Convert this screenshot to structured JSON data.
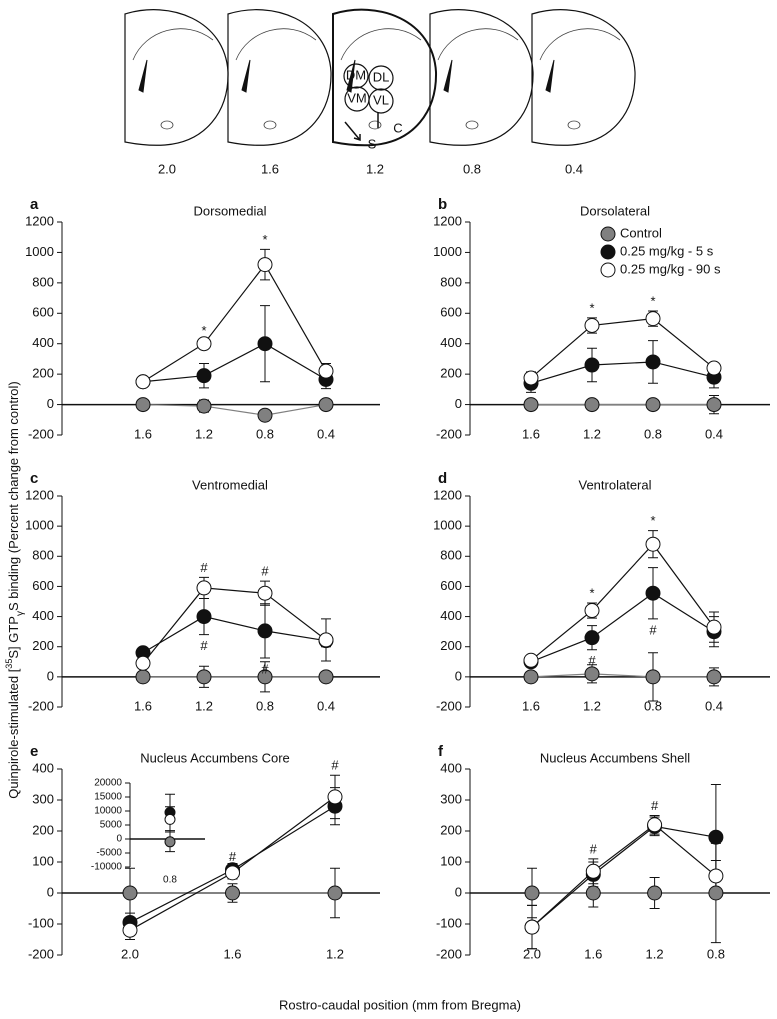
{
  "brain_sections": {
    "positions": [
      "2.0",
      "1.6",
      "1.2",
      "0.8",
      "0.4"
    ],
    "regions": [
      "DM",
      "DL",
      "VM",
      "VL"
    ],
    "arrows": [
      "S",
      "C"
    ]
  },
  "figure": {
    "y_label_parts": [
      "Quinpirole-stimulated [",
      "35",
      "S] GTP",
      "γ",
      "S binding (Percent change from control)"
    ],
    "x_label": "Rostro-caudal position (mm from Bregma)"
  },
  "chart_data": [
    {
      "type": "line",
      "panel": "a",
      "title": "Dorsomedial",
      "categories": [
        "1.6",
        "1.2",
        "0.8",
        "0.4"
      ],
      "ylim": [
        -200,
        1200
      ],
      "yticks": [
        -200,
        0,
        200,
        400,
        600,
        800,
        1000,
        1200
      ],
      "series": [
        {
          "color": "#808080",
          "values": [
            0,
            -10,
            -70,
            0
          ],
          "errors": [
            0,
            40,
            30,
            30
          ]
        },
        {
          "color": "#111111",
          "values": [
            150,
            190,
            400,
            165
          ],
          "errors": [
            20,
            80,
            250,
            60
          ]
        },
        {
          "color": "#ffffff",
          "values": [
            150,
            400,
            920,
            220
          ],
          "errors": [
            20,
            20,
            100,
            50
          ],
          "annotations_above": [
            null,
            "*",
            "*",
            null
          ]
        }
      ]
    },
    {
      "type": "line",
      "panel": "b",
      "title": "Dorsolateral",
      "categories": [
        "1.6",
        "1.2",
        "0.8",
        "0.4"
      ],
      "ylim": [
        -200,
        1200
      ],
      "yticks": [
        -200,
        0,
        200,
        400,
        600,
        800,
        1000,
        1200
      ],
      "legend": "upper-right",
      "series": [
        {
          "name": "Control",
          "color": "#808080",
          "values": [
            0,
            0,
            0,
            0
          ],
          "errors": [
            20,
            20,
            20,
            60
          ]
        },
        {
          "name": "0.25 mg/kg - 5 s",
          "color": "#111111",
          "values": [
            140,
            260,
            280,
            180
          ],
          "errors": [
            60,
            110,
            140,
            70
          ]
        },
        {
          "name": "0.25 mg/kg - 90 s",
          "color": "#ffffff",
          "values": [
            175,
            520,
            565,
            240
          ],
          "errors": [
            40,
            50,
            50,
            30
          ],
          "annotations_above": [
            null,
            "*",
            "*",
            null
          ]
        }
      ]
    },
    {
      "type": "line",
      "panel": "c",
      "title": "Ventromedial",
      "categories": [
        "1.6",
        "1.2",
        "0.8",
        "0.4"
      ],
      "ylim": [
        -200,
        1200
      ],
      "yticks": [
        -200,
        0,
        200,
        400,
        600,
        800,
        1000,
        1200
      ],
      "series": [
        {
          "color": "#808080",
          "values": [
            0,
            0,
            0,
            0
          ],
          "errors": [
            10,
            70,
            100,
            30
          ]
        },
        {
          "color": "#111111",
          "values": [
            160,
            400,
            305,
            240
          ],
          "errors": [
            20,
            120,
            180,
            40
          ],
          "annotations_below": [
            null,
            "#",
            "#",
            null
          ]
        },
        {
          "color": "#ffffff",
          "values": [
            90,
            590,
            555,
            245
          ],
          "errors": [
            20,
            70,
            80,
            140
          ],
          "annotations_above": [
            null,
            "#",
            "#",
            null
          ]
        }
      ]
    },
    {
      "type": "line",
      "panel": "d",
      "title": "Ventrolateral",
      "categories": [
        "1.6",
        "1.2",
        "0.8",
        "0.4"
      ],
      "ylim": [
        -200,
        1200
      ],
      "yticks": [
        -200,
        0,
        200,
        400,
        600,
        800,
        1000,
        1200
      ],
      "series": [
        {
          "color": "#808080",
          "values": [
            0,
            20,
            0,
            0
          ],
          "errors": [
            10,
            60,
            160,
            60
          ]
        },
        {
          "color": "#111111",
          "values": [
            100,
            260,
            555,
            300
          ],
          "errors": [
            20,
            80,
            170,
            100
          ],
          "annotations_below": [
            null,
            "#",
            "#",
            null
          ]
        },
        {
          "color": "#ffffff",
          "values": [
            110,
            440,
            880,
            330
          ],
          "errors": [
            20,
            50,
            90,
            100
          ],
          "annotations_above": [
            null,
            "*",
            "*",
            null
          ]
        }
      ]
    },
    {
      "type": "line",
      "panel": "e",
      "title": "Nucleus Accumbens Core",
      "categories": [
        "2.0",
        "1.6",
        "1.2"
      ],
      "ylim": [
        -200,
        400
      ],
      "yticks": [
        -200,
        -100,
        0,
        100,
        200,
        300,
        400
      ],
      "series": [
        {
          "color": "#808080",
          "values": [
            0,
            0,
            0
          ],
          "errors": [
            80,
            30,
            80
          ]
        },
        {
          "color": "#111111",
          "values": [
            -95,
            75,
            280
          ],
          "errors": [
            30,
            20,
            60
          ]
        },
        {
          "color": "#ffffff",
          "values": [
            -120,
            65,
            310
          ],
          "errors": [
            30,
            20,
            70
          ],
          "annotations_above": [
            null,
            "#",
            "#"
          ]
        }
      ]
    },
    {
      "type": "line",
      "panel": "f",
      "title": "Nucleus Accumbens Shell",
      "categories": [
        "2.0",
        "1.6",
        "1.2",
        "0.8"
      ],
      "ylim": [
        -200,
        400
      ],
      "yticks": [
        -200,
        -100,
        0,
        100,
        200,
        300,
        400
      ],
      "series": [
        {
          "color": "#808080",
          "values": [
            0,
            0,
            0,
            0
          ],
          "errors": [
            80,
            45,
            50,
            160
          ]
        },
        {
          "color": "#111111",
          "values": [
            -110,
            60,
            215,
            180
          ],
          "errors": [
            70,
            40,
            30,
            170
          ]
        },
        {
          "color": "#ffffff",
          "values": [
            -110,
            70,
            220,
            55
          ],
          "errors": [
            70,
            40,
            30,
            50
          ],
          "annotations_above": [
            null,
            "#",
            "#",
            null
          ]
        }
      ]
    },
    {
      "type": "line",
      "categories": [
        "0.8"
      ],
      "ylim": [
        -10000,
        20000
      ],
      "yticks": [
        -10000,
        -5000,
        0,
        5000,
        10000,
        15000,
        20000
      ],
      "series": [
        {
          "color": "#808080",
          "values": [
            -1000
          ],
          "errors": [
            3500
          ]
        },
        {
          "color": "#111111",
          "values": [
            9500
          ],
          "errors": [
            6500
          ]
        },
        {
          "color": "#ffffff",
          "values": [
            7000
          ],
          "errors": [
            4500
          ]
        }
      ]
    }
  ]
}
